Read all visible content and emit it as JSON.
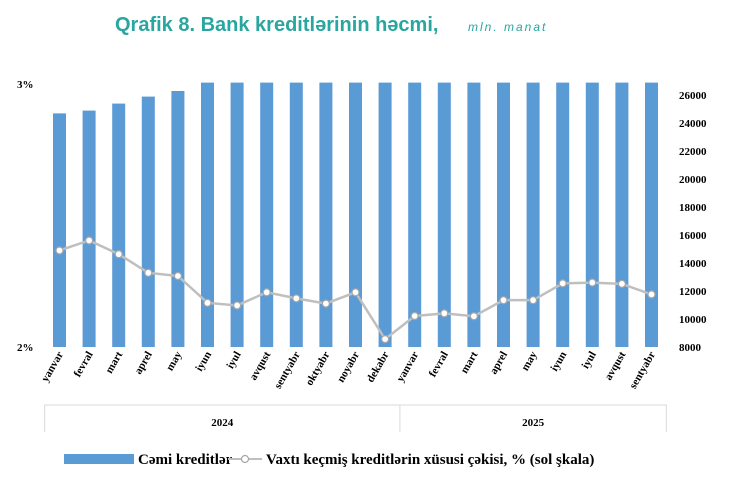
{
  "chart_data": {
    "type": "bar",
    "title": "Qrafik 8. Bank kreditlərinin həcmi,",
    "unit": "mln. manat",
    "categories": [
      "yanvar",
      "fevral",
      "mart",
      "aprel",
      "may",
      "iyun",
      "iyul",
      "avqust",
      "sentyabr",
      "oktyabr",
      "noyabr",
      "dekabr",
      "yanvar",
      "fevral",
      "mart",
      "aprel",
      "may",
      "iyun",
      "iyul",
      "avqust",
      "sentyabr"
    ],
    "year_groups": [
      {
        "label": "2024",
        "start": 0,
        "end": 11
      },
      {
        "label": "2025",
        "start": 12,
        "end": 20
      }
    ],
    "left_axis": {
      "ticks": [
        "2%",
        "3%"
      ],
      "range": [
        2,
        3
      ]
    },
    "right_axis": {
      "ticks": [
        "8000",
        "10000",
        "12000",
        "14000",
        "16000",
        "18000",
        "20000",
        "22000",
        "24000",
        "26000"
      ],
      "range": [
        8000,
        26800
      ]
    },
    "series": [
      {
        "name": "Cəmi kreditlər",
        "type": "bar",
        "axis": "right",
        "color": "#5b9bd5",
        "values": [
          24700,
          24900,
          25400,
          25900,
          26300,
          26900,
          26900,
          26900,
          26900,
          26900,
          26900,
          26900,
          26900,
          26900,
          26900,
          26900,
          26900,
          26900,
          26900,
          26900,
          26900
        ]
      },
      {
        "name": "Vaxtı keçmiş kreditlərin xüsusi çəkisi, % (sol şkala)",
        "type": "line",
        "axis": "left",
        "color": "#bfbfbf",
        "values": [
          2.367,
          2.405,
          2.353,
          2.282,
          2.27,
          2.168,
          2.158,
          2.208,
          2.185,
          2.165,
          2.208,
          2.03,
          2.118,
          2.128,
          2.117,
          2.178,
          2.178,
          2.242,
          2.245,
          2.24,
          2.2
        ]
      }
    ],
    "legend": {
      "position": "bottom"
    }
  }
}
